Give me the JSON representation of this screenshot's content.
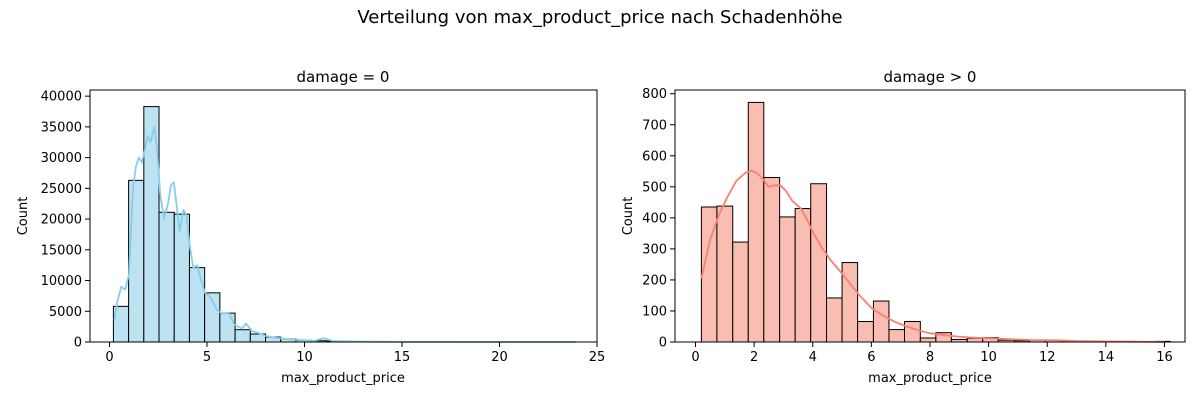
{
  "figure": {
    "title": "Verteilung von max_product_price nach Schadenhöhe"
  },
  "chart_data": [
    {
      "type": "bar",
      "subtype": "histogram",
      "title": "damage = 0",
      "xlabel": "max_product_price",
      "ylabel": "Count",
      "xlim": [
        -1.0,
        25.0
      ],
      "ylim": [
        0,
        41000
      ],
      "xticks": [
        0,
        5,
        10,
        15,
        20,
        25
      ],
      "yticks": [
        0,
        5000,
        10000,
        15000,
        20000,
        25000,
        30000,
        35000,
        40000
      ],
      "bar_color": "#bde3f2",
      "kde_color": "#87ceeb",
      "bins": [
        {
          "x0": 0.2,
          "x1": 0.98,
          "count": 5800
        },
        {
          "x0": 0.98,
          "x1": 1.76,
          "count": 26300
        },
        {
          "x0": 1.76,
          "x1": 2.54,
          "count": 38300
        },
        {
          "x0": 2.54,
          "x1": 3.32,
          "count": 21100
        },
        {
          "x0": 3.32,
          "x1": 4.1,
          "count": 20800
        },
        {
          "x0": 4.1,
          "x1": 4.88,
          "count": 12100
        },
        {
          "x0": 4.88,
          "x1": 5.66,
          "count": 8000
        },
        {
          "x0": 5.66,
          "x1": 6.44,
          "count": 4700
        },
        {
          "x0": 6.44,
          "x1": 7.22,
          "count": 2000
        },
        {
          "x0": 7.22,
          "x1": 8.0,
          "count": 1300
        },
        {
          "x0": 8.0,
          "x1": 8.78,
          "count": 800
        },
        {
          "x0": 8.78,
          "x1": 9.56,
          "count": 500
        },
        {
          "x0": 9.56,
          "x1": 10.34,
          "count": 300
        },
        {
          "x0": 10.34,
          "x1": 11.12,
          "count": 200
        },
        {
          "x0": 11.12,
          "x1": 11.9,
          "count": 150
        },
        {
          "x0": 11.9,
          "x1": 12.68,
          "count": 100
        },
        {
          "x0": 12.68,
          "x1": 13.46,
          "count": 60
        },
        {
          "x0": 13.46,
          "x1": 14.24,
          "count": 40
        },
        {
          "x0": 14.24,
          "x1": 15.02,
          "count": 30
        },
        {
          "x0": 15.02,
          "x1": 15.8,
          "count": 20
        },
        {
          "x0": 15.8,
          "x1": 16.58,
          "count": 15
        },
        {
          "x0": 16.58,
          "x1": 17.36,
          "count": 10
        },
        {
          "x0": 17.36,
          "x1": 18.14,
          "count": 8
        },
        {
          "x0": 18.14,
          "x1": 18.92,
          "count": 5
        },
        {
          "x0": 18.92,
          "x1": 19.7,
          "count": 5
        },
        {
          "x0": 19.7,
          "x1": 20.48,
          "count": 3
        },
        {
          "x0": 20.48,
          "x1": 21.26,
          "count": 3
        },
        {
          "x0": 21.26,
          "x1": 22.04,
          "count": 2
        },
        {
          "x0": 22.04,
          "x1": 22.82,
          "count": 2
        },
        {
          "x0": 22.82,
          "x1": 23.6,
          "count": 1
        }
      ],
      "kde": [
        [
          0.25,
          3500
        ],
        [
          0.4,
          6500
        ],
        [
          0.6,
          9000
        ],
        [
          0.8,
          8500
        ],
        [
          1.0,
          11000
        ],
        [
          1.2,
          25000
        ],
        [
          1.35,
          28500
        ],
        [
          1.5,
          30000
        ],
        [
          1.65,
          29200
        ],
        [
          1.8,
          31000
        ],
        [
          1.95,
          33500
        ],
        [
          2.1,
          32500
        ],
        [
          2.3,
          35000
        ],
        [
          2.45,
          31000
        ],
        [
          2.6,
          24000
        ],
        [
          2.8,
          20000
        ],
        [
          3.0,
          22500
        ],
        [
          3.15,
          25500
        ],
        [
          3.3,
          26000
        ],
        [
          3.45,
          22000
        ],
        [
          3.6,
          18000
        ],
        [
          3.8,
          21500
        ],
        [
          3.95,
          20500
        ],
        [
          4.1,
          16000
        ],
        [
          4.3,
          12000
        ],
        [
          4.5,
          12500
        ],
        [
          4.7,
          10000
        ],
        [
          4.9,
          8000
        ],
        [
          5.2,
          7200
        ],
        [
          5.5,
          5200
        ],
        [
          5.8,
          4600
        ],
        [
          6.1,
          4800
        ],
        [
          6.4,
          2800
        ],
        [
          6.8,
          2200
        ],
        [
          7.0,
          3000
        ],
        [
          7.3,
          1800
        ],
        [
          7.7,
          1400
        ],
        [
          8.0,
          1000
        ],
        [
          8.5,
          700
        ],
        [
          9.0,
          500
        ],
        [
          9.5,
          400
        ],
        [
          10.0,
          300
        ],
        [
          10.5,
          200
        ],
        [
          11.0,
          600
        ],
        [
          11.5,
          150
        ],
        [
          12.5,
          80
        ],
        [
          14.0,
          40
        ],
        [
          16.0,
          20
        ],
        [
          18.0,
          10
        ],
        [
          20.0,
          5
        ],
        [
          23.9,
          0
        ]
      ]
    },
    {
      "type": "bar",
      "subtype": "histogram",
      "title": "damage > 0",
      "xlabel": "max_product_price",
      "ylabel": "Count",
      "xlim": [
        -0.7,
        16.7
      ],
      "ylim": [
        0,
        812
      ],
      "xticks": [
        0,
        2,
        4,
        6,
        8,
        10,
        12,
        14,
        16
      ],
      "yticks": [
        0,
        100,
        200,
        300,
        400,
        500,
        600,
        700,
        800
      ],
      "bar_color": "#fabdb1",
      "kde_color": "#fa8072",
      "bins": [
        {
          "x0": 0.2,
          "x1": 0.73,
          "count": 435
        },
        {
          "x0": 0.73,
          "x1": 1.27,
          "count": 438
        },
        {
          "x0": 1.27,
          "x1": 1.8,
          "count": 322
        },
        {
          "x0": 1.8,
          "x1": 2.33,
          "count": 772
        },
        {
          "x0": 2.33,
          "x1": 2.87,
          "count": 530
        },
        {
          "x0": 2.87,
          "x1": 3.4,
          "count": 403
        },
        {
          "x0": 3.4,
          "x1": 3.93,
          "count": 430
        },
        {
          "x0": 3.93,
          "x1": 4.47,
          "count": 510
        },
        {
          "x0": 4.47,
          "x1": 5.0,
          "count": 142
        },
        {
          "x0": 5.0,
          "x1": 5.53,
          "count": 256
        },
        {
          "x0": 5.53,
          "x1": 6.07,
          "count": 66
        },
        {
          "x0": 6.07,
          "x1": 6.6,
          "count": 132
        },
        {
          "x0": 6.6,
          "x1": 7.13,
          "count": 40
        },
        {
          "x0": 7.13,
          "x1": 7.67,
          "count": 66
        },
        {
          "x0": 7.67,
          "x1": 8.2,
          "count": 13
        },
        {
          "x0": 8.2,
          "x1": 8.73,
          "count": 30
        },
        {
          "x0": 8.73,
          "x1": 9.27,
          "count": 8
        },
        {
          "x0": 9.27,
          "x1": 9.8,
          "count": 12
        },
        {
          "x0": 9.8,
          "x1": 10.33,
          "count": 14
        },
        {
          "x0": 10.33,
          "x1": 10.87,
          "count": 6
        },
        {
          "x0": 10.87,
          "x1": 11.4,
          "count": 4
        },
        {
          "x0": 11.4,
          "x1": 11.93,
          "count": 6
        },
        {
          "x0": 11.93,
          "x1": 12.47,
          "count": 6
        },
        {
          "x0": 12.47,
          "x1": 13.0,
          "count": 3
        },
        {
          "x0": 13.0,
          "x1": 13.53,
          "count": 2
        },
        {
          "x0": 13.53,
          "x1": 14.07,
          "count": 2
        },
        {
          "x0": 14.07,
          "x1": 14.6,
          "count": 1
        },
        {
          "x0": 14.6,
          "x1": 15.13,
          "count": 1
        },
        {
          "x0": 15.13,
          "x1": 15.67,
          "count": 1
        },
        {
          "x0": 15.67,
          "x1": 16.2,
          "count": 2
        }
      ],
      "kde": [
        [
          0.2,
          205
        ],
        [
          0.5,
          330
        ],
        [
          0.8,
          410
        ],
        [
          1.1,
          470
        ],
        [
          1.4,
          520
        ],
        [
          1.7,
          545
        ],
        [
          1.9,
          552
        ],
        [
          2.1,
          545
        ],
        [
          2.3,
          525
        ],
        [
          2.5,
          500
        ],
        [
          2.7,
          505
        ],
        [
          2.9,
          505
        ],
        [
          3.1,
          485
        ],
        [
          3.3,
          455
        ],
        [
          3.6,
          430
        ],
        [
          3.8,
          395
        ],
        [
          4.0,
          355
        ],
        [
          4.3,
          305
        ],
        [
          4.6,
          265
        ],
        [
          5.0,
          220
        ],
        [
          5.3,
          185
        ],
        [
          5.6,
          150
        ],
        [
          6.0,
          110
        ],
        [
          6.4,
          85
        ],
        [
          6.8,
          65
        ],
        [
          7.2,
          50
        ],
        [
          7.6,
          38
        ],
        [
          8.0,
          28
        ],
        [
          8.5,
          22
        ],
        [
          9.0,
          17
        ],
        [
          9.5,
          14
        ],
        [
          10.0,
          12
        ],
        [
          10.5,
          10
        ],
        [
          11.0,
          8
        ],
        [
          11.5,
          6
        ],
        [
          12.0,
          6
        ],
        [
          12.5,
          5
        ],
        [
          13.0,
          3
        ],
        [
          14.0,
          2
        ],
        [
          15.0,
          1
        ],
        [
          16.0,
          0
        ]
      ]
    }
  ]
}
